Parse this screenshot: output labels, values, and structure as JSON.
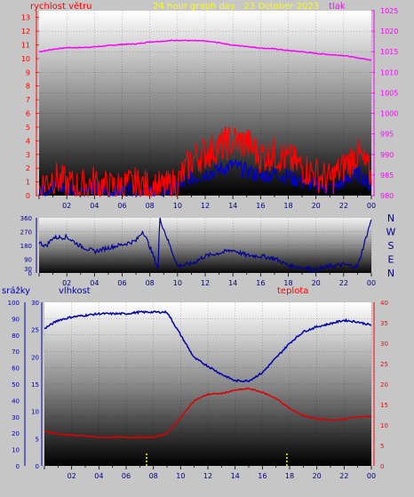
{
  "header": {
    "title": "24 hour graph day : 23 October 2023",
    "left_label": "rychlost větru",
    "right_label": "tlak"
  },
  "bottom_labels": {
    "rain": "srážky",
    "humidity": "vlhkost",
    "temperature": "teplota"
  },
  "colors": {
    "background": "#c6c6c6",
    "wind_speed": "#ff0000",
    "wind_gust": "#0000cc",
    "pressure": "#ff00ff",
    "direction": "#000099",
    "humidity": "#0000aa",
    "temperature": "#dd0000",
    "rain": "#ffff00",
    "title": "#ffff00"
  },
  "chart_data": [
    {
      "id": "wind_pressure",
      "type": "line",
      "x_ticks": [
        "02",
        "04",
        "06",
        "08",
        "10",
        "12",
        "14",
        "16",
        "18",
        "20",
        "22",
        "00"
      ],
      "left_axis": {
        "ticks": [
          0,
          1,
          2,
          3,
          4,
          5,
          6,
          7,
          8,
          9,
          10,
          11,
          12,
          13
        ],
        "range": [
          0,
          13.5
        ]
      },
      "right_axis": {
        "ticks": [
          980,
          985,
          990,
          995,
          1000,
          1005,
          1010,
          1015,
          1020,
          1025
        ],
        "range": [
          980,
          1025
        ]
      },
      "series": [
        {
          "role": "pressure",
          "axis": "right",
          "x": [
            0,
            1,
            2,
            3,
            4,
            5,
            6,
            7,
            8,
            9,
            10,
            11,
            12,
            13,
            14,
            15,
            16,
            17,
            18,
            19,
            20,
            21,
            22,
            23,
            24
          ],
          "values": [
            1015.0,
            1015.6,
            1016.0,
            1016.0,
            1016.2,
            1016.5,
            1016.8,
            1016.9,
            1017.4,
            1017.6,
            1017.8,
            1017.7,
            1017.6,
            1017.2,
            1016.6,
            1016.3,
            1015.9,
            1015.7,
            1015.3,
            1015.0,
            1014.6,
            1014.3,
            1014.1,
            1013.5,
            1013.0
          ]
        },
        {
          "role": "wind_speed",
          "axis": "left",
          "x": [
            0,
            1,
            2,
            3,
            4,
            5,
            6,
            7,
            8,
            9,
            10,
            11,
            12,
            13,
            14,
            15,
            16,
            17,
            18,
            19,
            20,
            21,
            22,
            23,
            24
          ],
          "values": [
            0.6,
            1.4,
            0.8,
            0.6,
            1.0,
            0.5,
            0.7,
            0.8,
            0.6,
            0.5,
            0.9,
            2.6,
            3.1,
            3.6,
            4.0,
            3.8,
            2.9,
            3.1,
            2.6,
            2.1,
            1.6,
            1.1,
            2.1,
            3.1,
            1.4
          ]
        },
        {
          "role": "wind_gust",
          "axis": "left",
          "x": [
            0,
            1,
            2,
            3,
            4,
            5,
            6,
            7,
            8,
            9,
            10,
            11,
            12,
            13,
            14,
            15,
            16,
            17,
            18,
            19,
            20,
            21,
            22,
            23,
            24
          ],
          "values": [
            0.3,
            0.7,
            0.5,
            0.3,
            0.6,
            0.2,
            0.4,
            0.5,
            0.3,
            0.3,
            0.5,
            1.3,
            1.6,
            1.9,
            2.2,
            1.8,
            1.4,
            1.6,
            1.4,
            1.0,
            0.8,
            0.5,
            1.0,
            1.6,
            0.7
          ]
        }
      ]
    },
    {
      "id": "wind_direction",
      "type": "line",
      "x_ticks": [
        "02",
        "04",
        "06",
        "08",
        "10",
        "12",
        "14",
        "16",
        "18",
        "20",
        "22",
        "00"
      ],
      "left_axis": {
        "ticks": [
          0,
          30,
          90,
          180,
          270,
          360
        ],
        "range": [
          0,
          360
        ]
      },
      "right_axis_labels": [
        "N",
        "W",
        "S",
        "E",
        "N"
      ],
      "series": [
        {
          "role": "direction",
          "x": [
            0,
            0.5,
            1,
            2,
            3,
            4,
            5,
            6,
            7,
            7.5,
            8,
            8.6,
            8.7,
            10,
            11,
            12,
            13,
            14,
            15,
            16,
            17,
            18,
            19,
            20,
            21,
            22,
            23,
            24
          ],
          "values": [
            200,
            175,
            230,
            235,
            175,
            140,
            165,
            185,
            210,
            275,
            170,
            30,
            360,
            45,
            60,
            110,
            130,
            150,
            115,
            110,
            95,
            50,
            35,
            20,
            45,
            55,
            40,
            350
          ]
        }
      ]
    },
    {
      "id": "humidity_temperature",
      "type": "line",
      "x_ticks": [
        "02",
        "04",
        "06",
        "08",
        "10",
        "12",
        "14",
        "16",
        "18",
        "20",
        "22",
        "00"
      ],
      "left_axis": {
        "ticks": [
          0,
          10,
          20,
          30,
          40,
          50,
          60,
          70,
          80,
          90,
          100
        ],
        "range": [
          0,
          100
        ]
      },
      "middle_axis": {
        "ticks": [
          0,
          5,
          10,
          15,
          20,
          25,
          30
        ],
        "range": [
          0,
          30
        ]
      },
      "right_axis": {
        "ticks": [
          0,
          5,
          10,
          15,
          20,
          25,
          30,
          35,
          40
        ],
        "range": [
          0,
          40
        ]
      },
      "series": [
        {
          "role": "humidity",
          "axis": "left",
          "x": [
            0,
            1,
            2,
            3,
            4,
            5,
            6,
            7,
            8,
            9,
            10,
            11,
            12,
            13,
            14,
            15,
            16,
            17,
            18,
            19,
            20,
            21,
            22,
            23,
            24
          ],
          "values": [
            84,
            89,
            91,
            92,
            93,
            93,
            93,
            94,
            94,
            94,
            80,
            66,
            61,
            56,
            52,
            52,
            57,
            66,
            75,
            82,
            85,
            87,
            89,
            88,
            86
          ]
        },
        {
          "role": "temperature",
          "axis": "right",
          "x": [
            0,
            1,
            2,
            3,
            4,
            5,
            6,
            7,
            8,
            9,
            10,
            11,
            12,
            13,
            14,
            15,
            16,
            17,
            18,
            19,
            20,
            21,
            22,
            23,
            24
          ],
          "values": [
            8.5,
            7.8,
            7.5,
            7.3,
            7.0,
            7.0,
            7.0,
            7.0,
            7.0,
            7.9,
            11.8,
            16.0,
            17.5,
            17.7,
            18.5,
            18.9,
            18.0,
            16.5,
            14.0,
            12.3,
            11.5,
            11.2,
            11.4,
            12.1,
            12.0
          ]
        },
        {
          "role": "rain",
          "axis": "middle",
          "x": [
            7.5,
            17.8
          ],
          "values": [
            0.4,
            0.4
          ]
        }
      ]
    }
  ]
}
